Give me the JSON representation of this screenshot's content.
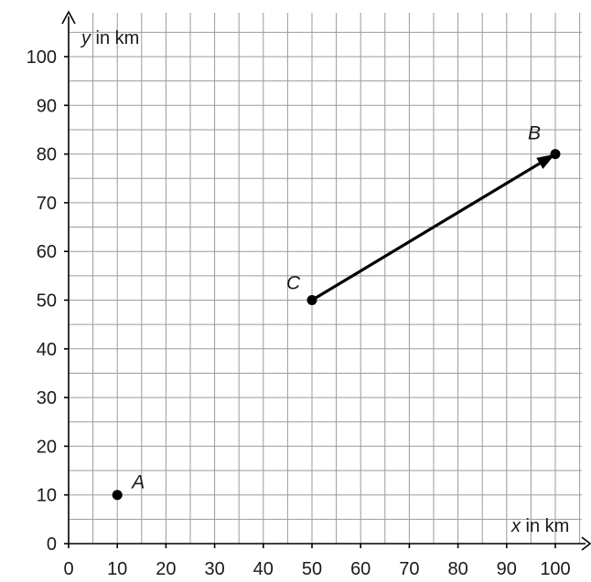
{
  "chart_data": {
    "type": "scatter",
    "title": "",
    "xlabel": {
      "var": "x",
      "unit": " in km"
    },
    "ylabel": {
      "var": "y",
      "unit": " in km"
    },
    "xlim": [
      0,
      105
    ],
    "ylim": [
      0,
      105
    ],
    "xticks": [
      0,
      10,
      20,
      30,
      40,
      50,
      60,
      70,
      80,
      90,
      100
    ],
    "yticks": [
      0,
      10,
      20,
      30,
      40,
      50,
      60,
      70,
      80,
      90,
      100
    ],
    "grid": true,
    "points": [
      {
        "label": "A",
        "x": 10,
        "y": 10
      },
      {
        "label": "B",
        "x": 100,
        "y": 80
      },
      {
        "label": "C",
        "x": 50,
        "y": 50
      }
    ],
    "vectors": [
      {
        "from": "C",
        "to": "B"
      }
    ]
  }
}
